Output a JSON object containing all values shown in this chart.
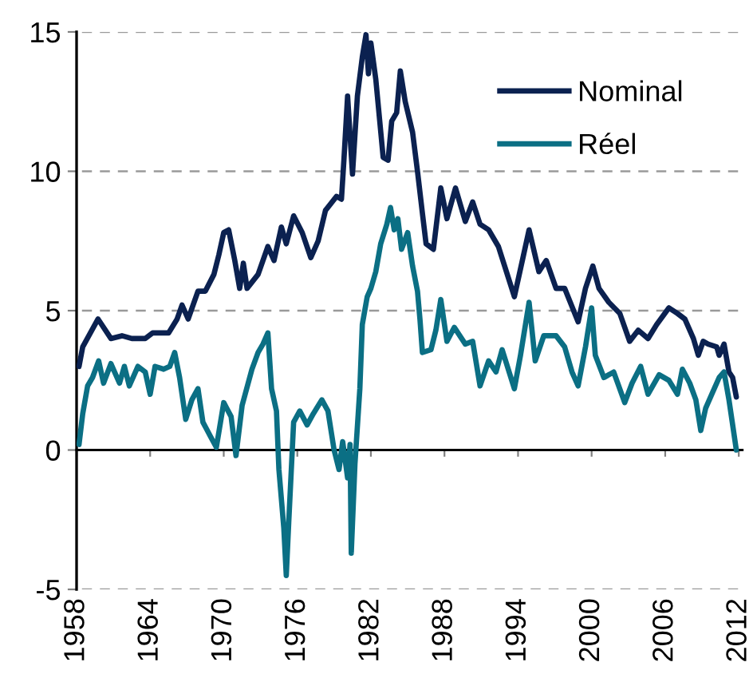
{
  "chart_data": {
    "type": "line",
    "series": [
      {
        "name": "Nominal",
        "color": "#0b2150",
        "x": [
          1958.2,
          1958.5,
          1959.75,
          1960.8,
          1961.7,
          1962.5,
          1963.6,
          1964.2,
          1965.5,
          1966.2,
          1966.6,
          1967.1,
          1967.9,
          1968.5,
          1969.2,
          1969.6,
          1970.0,
          1970.4,
          1970.9,
          1971.3,
          1971.6,
          1971.9,
          1972.8,
          1973.6,
          1974.1,
          1974.7,
          1975.1,
          1975.7,
          1976.4,
          1977.1,
          1977.7,
          1978.3,
          1979.2,
          1979.6,
          1979.8,
          1980.1,
          1980.5,
          1980.9,
          1981.3,
          1981.6,
          1981.8,
          1982.0,
          1982.4,
          1983.0,
          1983.4,
          1983.7,
          1984.1,
          1984.4,
          1984.8,
          1985.4,
          1985.8,
          1986.2,
          1986.5,
          1987.1,
          1987.7,
          1988.2,
          1988.9,
          1989.7,
          1990.3,
          1990.9,
          1991.6,
          1992.4,
          1993.7,
          1994.4,
          1994.9,
          1995.7,
          1996.3,
          1997.1,
          1997.8,
          1998.9,
          1999.5,
          2000.1,
          2000.6,
          2001.4,
          2002.3,
          2003.1,
          2003.8,
          2004.6,
          2005.3,
          2006.3,
          2007.0,
          2007.6,
          2008.3,
          2008.7,
          2009.1,
          2009.5,
          2010.2,
          2010.4,
          2010.8,
          2011.2,
          2011.5,
          2011.8
        ],
        "values": [
          3.0,
          3.7,
          4.7,
          4.0,
          4.1,
          4.0,
          4.0,
          4.2,
          4.2,
          4.7,
          5.2,
          4.7,
          5.7,
          5.7,
          6.3,
          7.0,
          7.8,
          7.9,
          6.8,
          5.8,
          6.7,
          5.8,
          6.3,
          7.3,
          6.8,
          8.0,
          7.4,
          8.4,
          7.8,
          6.9,
          7.5,
          8.6,
          9.1,
          9.0,
          10.4,
          12.7,
          9.9,
          12.7,
          14.1,
          14.9,
          13.5,
          14.6,
          13.3,
          10.5,
          10.4,
          11.8,
          12.1,
          13.6,
          12.5,
          11.4,
          10.0,
          8.5,
          7.4,
          7.2,
          9.4,
          8.3,
          9.4,
          8.2,
          8.9,
          8.1,
          7.9,
          7.3,
          5.5,
          6.9,
          7.9,
          6.4,
          6.8,
          5.8,
          5.8,
          4.6,
          5.8,
          6.6,
          5.8,
          5.3,
          4.9,
          3.9,
          4.3,
          4.0,
          4.5,
          5.1,
          4.9,
          4.7,
          4.0,
          3.4,
          3.9,
          3.8,
          3.7,
          3.4,
          3.8,
          2.8,
          2.6,
          1.9
        ]
      },
      {
        "name": "Réel",
        "color": "#0b6f84",
        "x": [
          1958.2,
          1958.5,
          1958.9,
          1959.3,
          1959.8,
          1960.2,
          1960.8,
          1961.5,
          1961.9,
          1962.3,
          1963.0,
          1963.6,
          1964.0,
          1964.4,
          1965.1,
          1965.6,
          1966.0,
          1966.4,
          1966.9,
          1967.4,
          1967.9,
          1968.3,
          1968.9,
          1969.4,
          1970.0,
          1970.6,
          1971.0,
          1971.5,
          1972.3,
          1972.8,
          1973.2,
          1973.6,
          1973.9,
          1974.3,
          1974.5,
          1974.9,
          1975.1,
          1975.3,
          1975.7,
          1976.2,
          1976.8,
          1977.3,
          1978.0,
          1978.5,
          1979.0,
          1979.4,
          1979.7,
          1980.1,
          1980.3,
          1980.4,
          1980.7,
          1981.1,
          1981.3,
          1981.7,
          1982.0,
          1982.4,
          1982.8,
          1983.3,
          1983.6,
          1983.9,
          1984.2,
          1984.5,
          1985.0,
          1985.4,
          1985.8,
          1986.0,
          1986.2,
          1986.9,
          1987.3,
          1987.7,
          1988.2,
          1988.8,
          1989.7,
          1990.3,
          1990.9,
          1991.6,
          1992.2,
          1992.7,
          1993.7,
          1994.2,
          1994.9,
          1995.4,
          1996.1,
          1997.1,
          1997.8,
          1998.4,
          1998.9,
          1999.5,
          2000.0,
          2000.3,
          2001.0,
          2001.8,
          2002.7,
          2003.3,
          2004.0,
          2004.6,
          2005.5,
          2006.3,
          2007.0,
          2007.4,
          2008.0,
          2008.5,
          2008.9,
          2009.3,
          2009.8,
          2010.4,
          2010.8,
          2011.2,
          2011.5,
          2011.8
        ],
        "values": [
          0.2,
          1.3,
          2.3,
          2.6,
          3.2,
          2.4,
          3.1,
          2.4,
          3.0,
          2.3,
          3.0,
          2.8,
          2.0,
          3.0,
          2.9,
          3.0,
          3.5,
          2.6,
          1.1,
          1.8,
          2.2,
          1.0,
          0.5,
          0.1,
          1.7,
          1.2,
          -0.2,
          1.6,
          2.9,
          3.5,
          3.8,
          4.2,
          2.2,
          1.4,
          -0.7,
          -2.8,
          -4.5,
          -2.6,
          1.0,
          1.4,
          0.9,
          1.3,
          1.8,
          1.4,
          0.0,
          -0.7,
          0.3,
          -1.0,
          0.2,
          -3.7,
          -0.5,
          2.2,
          4.5,
          5.5,
          5.8,
          6.4,
          7.4,
          8.1,
          8.7,
          7.9,
          8.3,
          7.2,
          7.8,
          6.6,
          5.7,
          4.7,
          3.5,
          3.6,
          4.3,
          5.4,
          3.9,
          4.4,
          3.8,
          3.9,
          2.3,
          3.2,
          2.8,
          3.6,
          2.2,
          3.4,
          5.3,
          3.2,
          4.1,
          4.1,
          3.7,
          2.8,
          2.3,
          3.7,
          5.1,
          3.4,
          2.6,
          2.8,
          1.7,
          2.4,
          3.0,
          2.0,
          2.7,
          2.5,
          2.0,
          2.9,
          2.4,
          1.8,
          0.7,
          1.5,
          2.0,
          2.6,
          2.8,
          1.8,
          0.9,
          0.0
        ]
      }
    ],
    "xlim": [
      1958,
      2012.3
    ],
    "xticks": [
      1958,
      1964,
      1970,
      1976,
      1982,
      1988,
      1994,
      2000,
      2006,
      2012
    ],
    "ylim": [
      -5,
      15
    ],
    "yticks": [
      -5,
      0,
      5,
      10,
      15
    ],
    "grid": "y",
    "legend": "top right"
  }
}
